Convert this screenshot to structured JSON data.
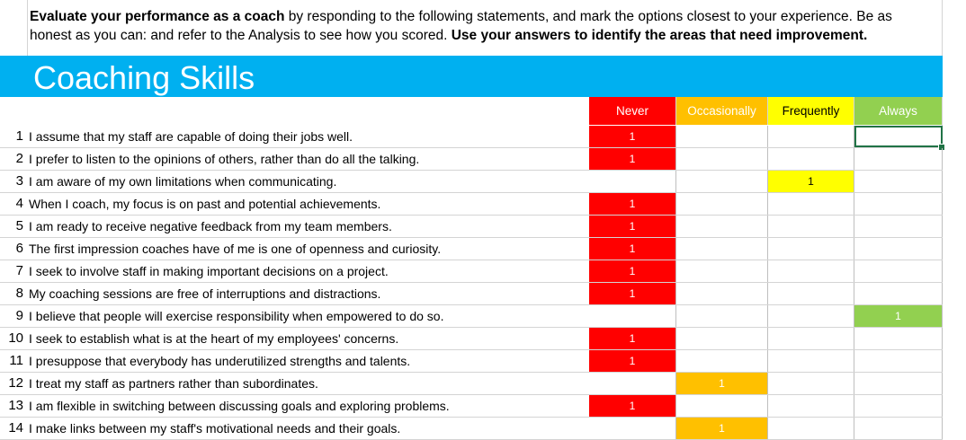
{
  "intro": {
    "bold_lead": "Evaluate your performance as a coach",
    "text_mid": " by responding to the following statements, and mark the options closest to your experience. Be as honest as you can: and refer to the Analysis to see how you scored. ",
    "bold_tail": "Use your answers to identify the areas that need improvement."
  },
  "banner": {
    "title": "Coaching Skills"
  },
  "columns": [
    {
      "label": "Never",
      "bg": "#ff0000",
      "color": "#ffffff"
    },
    {
      "label": "Occasionally",
      "bg": "#ffc000",
      "color": "#ffffff"
    },
    {
      "label": "Frequently",
      "bg": "#ffff00",
      "color": "#000000"
    },
    {
      "label": "Always",
      "bg": "#92d050",
      "color": "#ffffff"
    }
  ],
  "colors": {
    "banner": "#00b0f0",
    "selection": "#217346"
  },
  "selected_cell": {
    "row": 1,
    "column": "Always"
  },
  "rows": [
    {
      "num": "1",
      "text": "I assume that my staff are capable of doing their jobs well.",
      "answer": 0,
      "mark": "1"
    },
    {
      "num": "2",
      "text": "I prefer to listen to the opinions of others, rather than do all the talking.",
      "answer": 0,
      "mark": "1"
    },
    {
      "num": "3",
      "text": "I am aware of my own limitations when communicating.",
      "answer": 2,
      "mark": "1"
    },
    {
      "num": "4",
      "text": "When I coach, my focus is on past and potential achievements.",
      "answer": 0,
      "mark": "1"
    },
    {
      "num": "5",
      "text": "I am ready to receive negative feedback from my team members.",
      "answer": 0,
      "mark": "1"
    },
    {
      "num": "6",
      "text": "The first impression coaches have of me is one of openness and curiosity.",
      "answer": 0,
      "mark": "1"
    },
    {
      "num": "7",
      "text": "I seek to involve staff in making important decisions on a project.",
      "answer": 0,
      "mark": "1"
    },
    {
      "num": "8",
      "text": "My coaching sessions are free of interruptions and distractions.",
      "answer": 0,
      "mark": "1"
    },
    {
      "num": "9",
      "text": "I believe that people will exercise responsibility when empowered to do so.",
      "answer": 3,
      "mark": "1"
    },
    {
      "num": "10",
      "text": "I seek to establish what is at the heart of my employees' concerns.",
      "answer": 0,
      "mark": "1"
    },
    {
      "num": "11",
      "text": "I presuppose that everybody has underutilized strengths and talents.",
      "answer": 0,
      "mark": "1"
    },
    {
      "num": "12",
      "text": "I treat my staff as partners rather than subordinates.",
      "answer": 1,
      "mark": "1"
    },
    {
      "num": "13",
      "text": "I am flexible in switching between discussing goals and exploring problems.",
      "answer": 0,
      "mark": "1"
    },
    {
      "num": "14",
      "text": "I make links between my staff's motivational needs and their goals.",
      "answer": 1,
      "mark": "1"
    }
  ]
}
